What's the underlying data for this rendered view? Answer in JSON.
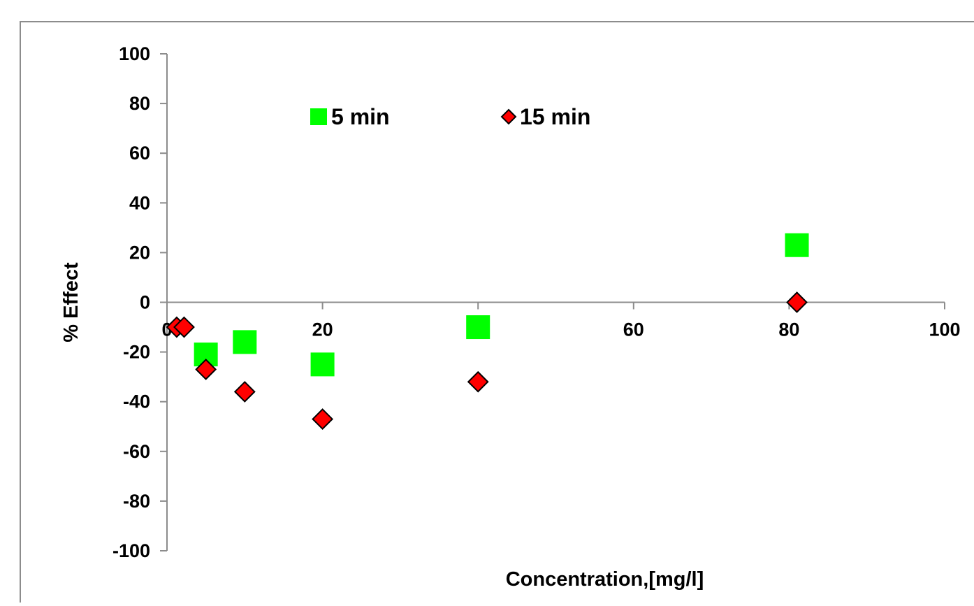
{
  "chart_data": {
    "type": "scatter",
    "title": "",
    "xlabel": "Concentration,[mg/l]",
    "ylabel": "% Effect",
    "xlim": [
      0,
      100
    ],
    "ylim": [
      -100,
      100
    ],
    "x_ticks": [
      0,
      20,
      40,
      60,
      80,
      100
    ],
    "y_ticks": [
      100,
      80,
      60,
      40,
      20,
      0,
      -20,
      -40,
      -60,
      -80,
      -100
    ],
    "grid": false,
    "legend_position": "top-center",
    "series": [
      {
        "name": "5 min",
        "marker": "square",
        "color": "#00ff00",
        "points": [
          {
            "x": 5,
            "y": -21
          },
          {
            "x": 10,
            "y": -16
          },
          {
            "x": 20,
            "y": -25
          },
          {
            "x": 40,
            "y": -10
          },
          {
            "x": 81,
            "y": 23
          }
        ]
      },
      {
        "name": "15 min",
        "marker": "diamond",
        "color": "#ff0000",
        "points": [
          {
            "x": 1.25,
            "y": -10
          },
          {
            "x": 2.2,
            "y": -10
          },
          {
            "x": 5,
            "y": -27
          },
          {
            "x": 10,
            "y": -36
          },
          {
            "x": 20,
            "y": -47
          },
          {
            "x": 40,
            "y": -32
          },
          {
            "x": 81,
            "y": 0
          }
        ]
      }
    ]
  }
}
